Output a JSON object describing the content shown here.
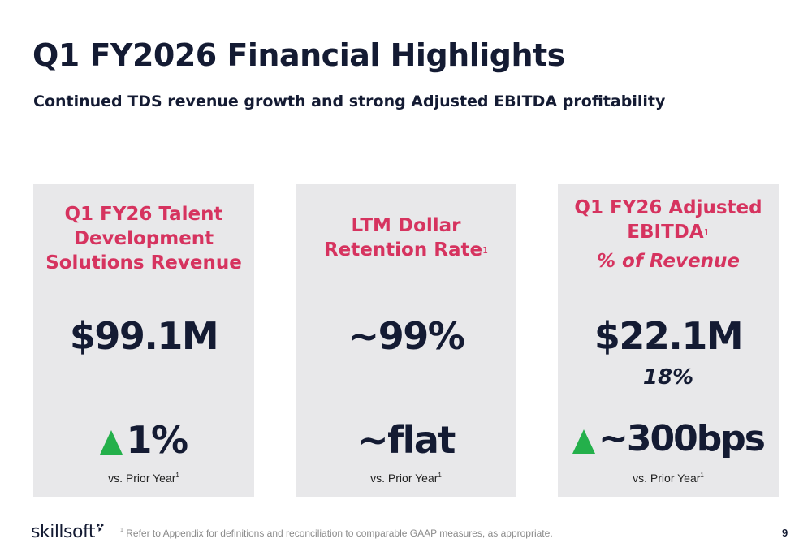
{
  "slide": {
    "title": "Q1 FY2026 Financial Highlights",
    "subtitle": "Continued TDS revenue growth and strong Adjusted EBITDA profitability"
  },
  "cards": [
    {
      "heading_lines": [
        "Q1 FY26 Talent",
        "Development",
        "Solutions Revenue"
      ],
      "value": "$99.1M",
      "change": "1%",
      "change_icon": "up-triangle-icon",
      "comparison": "vs. Prior Year",
      "comparison_footnote": "1"
    },
    {
      "heading_lines": [
        "LTM Dollar",
        "Retention Rate"
      ],
      "heading_footnote": "1",
      "value": "~99%",
      "change": "~flat",
      "comparison": "vs. Prior Year",
      "comparison_footnote": "1"
    },
    {
      "heading_lines": [
        "Q1 FY26 Adjusted",
        "EBITDA"
      ],
      "heading_footnote": "1",
      "heading_sub": "% of Revenue",
      "value": "$22.1M",
      "pct_value": "18%",
      "change": "~300bps",
      "change_icon": "up-triangle-icon",
      "comparison": "vs. Prior Year",
      "comparison_footnote": "1"
    }
  ],
  "footer": {
    "logo_text": "skillsoft",
    "footnote_mark": "1",
    "footnote_text": " Refer to Appendix for definitions and reconciliation to comparable GAAP measures, as appropriate.",
    "page_number": "9"
  },
  "colors": {
    "navy": "#141b33",
    "accent_pink": "#d6335f",
    "card_bg": "#e8e8ea",
    "up_green": "#24b04b"
  }
}
